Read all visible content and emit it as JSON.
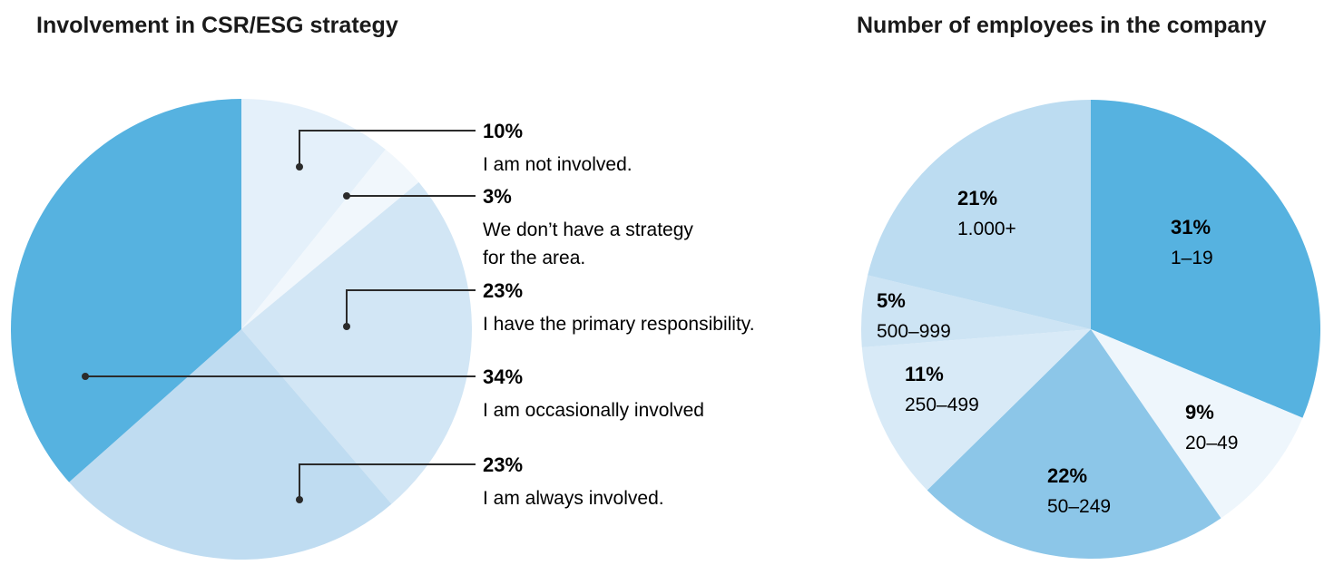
{
  "chart_data": [
    {
      "type": "pie",
      "title": "Involvement in CSR/ESG strategy",
      "slices": [
        {
          "value": 10,
          "pct_label": "10%",
          "label": [
            "I am not involved."
          ],
          "color": "#e4f0fa"
        },
        {
          "value": 3,
          "pct_label": "3%",
          "label": [
            "We don’t have a strategy",
            "for the area."
          ],
          "color": "#f1f7fc"
        },
        {
          "value": 23,
          "pct_label": "23%",
          "label": [
            "I have the primary responsibility."
          ],
          "color": "#d2e6f5"
        },
        {
          "value": 23,
          "pct_label": "23%",
          "label": [
            "I am always involved."
          ],
          "color": "#bfdcf1"
        },
        {
          "value": 34,
          "pct_label": "34%",
          "label": [
            "I am occasionally involved"
          ],
          "color": "#56b2e0"
        }
      ],
      "label_order": [
        0,
        1,
        2,
        4,
        3
      ],
      "start": "12 o'clock",
      "direction": "clockwise",
      "legend": "right, with leader lines"
    },
    {
      "type": "pie",
      "title": "Number of employees in the company",
      "slices": [
        {
          "value": 31,
          "pct_label": "31%",
          "label": [
            "1–19"
          ],
          "color": "#56b2e0"
        },
        {
          "value": 9,
          "pct_label": "9%",
          "label": [
            "20–49"
          ],
          "color": "#eef6fc"
        },
        {
          "value": 22,
          "pct_label": "22%",
          "label": [
            "50–249"
          ],
          "color": "#8cc6e8"
        },
        {
          "value": 11,
          "pct_label": "11%",
          "label": [
            "250–499"
          ],
          "color": "#d8eaf7"
        },
        {
          "value": 5,
          "pct_label": "5%",
          "label": [
            "500–999"
          ],
          "color": "#cde4f4"
        },
        {
          "value": 21,
          "pct_label": "21%",
          "label": [
            "1.000+"
          ],
          "color": "#bcdcf1"
        }
      ],
      "start": "12 o'clock",
      "direction": "clockwise",
      "labels": "inside slices"
    }
  ]
}
